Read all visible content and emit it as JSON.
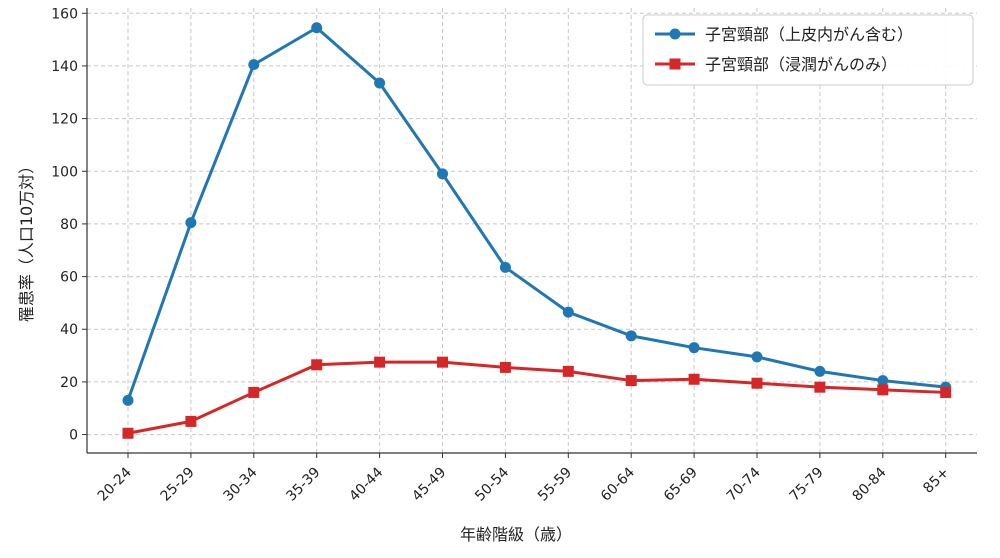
{
  "chart_data": {
    "type": "line",
    "categories": [
      "20-24",
      "25-29",
      "30-34",
      "35-39",
      "40-44",
      "45-49",
      "50-54",
      "55-59",
      "60-64",
      "65-69",
      "70-74",
      "75-79",
      "80-84",
      "85+"
    ],
    "series": [
      {
        "name": "子宮頸部（上皮内がん含む）",
        "color": "#1f77b4",
        "marker": "circle",
        "values": [
          13,
          80.5,
          140.5,
          154.5,
          133.5,
          99,
          63.5,
          46.5,
          37.5,
          33,
          29.5,
          24,
          20.5,
          18
        ]
      },
      {
        "name": "子宮頸部（浸潤がんのみ）",
        "color": "#d62728",
        "marker": "square",
        "values": [
          0.5,
          5,
          16,
          26.5,
          27.5,
          27.5,
          25.5,
          24,
          20.5,
          21,
          19.5,
          18,
          17,
          16
        ]
      }
    ],
    "xlabel": "年齢階級（歳）",
    "ylabel": "罹患率（人口10万対）",
    "ylim": [
      -7,
      162
    ],
    "yticks": [
      0,
      20,
      40,
      60,
      80,
      100,
      120,
      140,
      160
    ],
    "grid": true,
    "legend_position": "top-right"
  }
}
